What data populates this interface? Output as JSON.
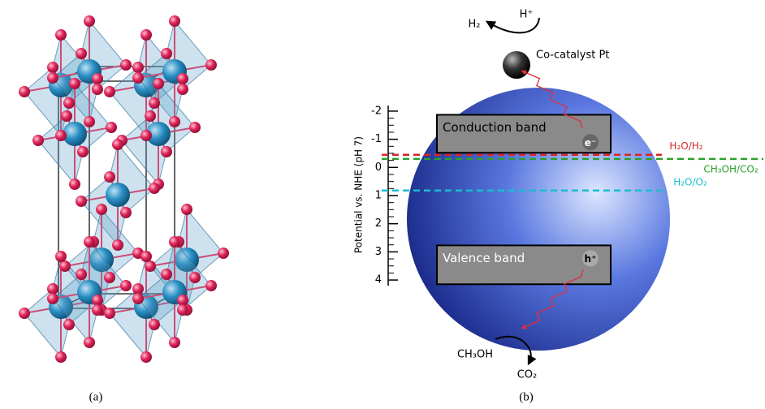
{
  "panels": {
    "a": {
      "label": "(a)"
    },
    "b": {
      "label": "(b)"
    }
  },
  "axis": {
    "label": "Potential vs. NHE (pH 7)",
    "lim": [
      -2.2,
      4.2
    ],
    "ticks": [
      -2,
      -1,
      0,
      1,
      2,
      3,
      4
    ]
  },
  "bands": [
    {
      "label": "Conduction band",
      "range": [
        -1.87,
        -0.52
      ],
      "carrier": "e⁻"
    },
    {
      "label": "Valence band",
      "range": [
        2.77,
        4.15
      ],
      "carrier": "h⁺"
    }
  ],
  "levels": [
    {
      "label": "H₂O/H₂",
      "value": -0.45,
      "color": "#d62728"
    },
    {
      "label": "CH₃OH/CO₂",
      "value": -0.3,
      "color": "#2ca02c"
    },
    {
      "label": "H₂O/O₂",
      "value": 0.82,
      "color": "#17becf"
    }
  ],
  "catalyst": {
    "label": "Co-catalyst Pt",
    "product": "H₂",
    "reactant": "H⁺"
  },
  "oxidation": {
    "reactant": "CH₃OH",
    "product": "CO₂"
  }
}
